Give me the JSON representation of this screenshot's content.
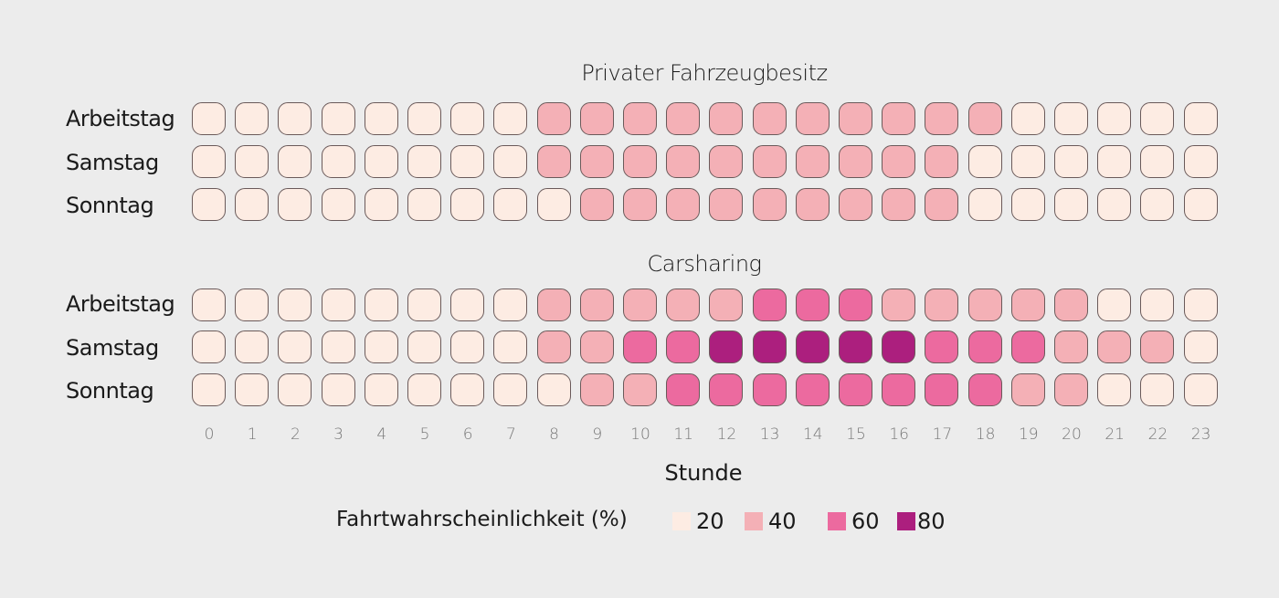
{
  "colors": {
    "1": "#fdece3",
    "2": "#f4b0b6",
    "3": "#ec6a9f",
    "4": "#ac1f7e"
  },
  "chart_data": {
    "type": "heatmap",
    "xlabel": "Stunde",
    "x": [
      0,
      1,
      2,
      3,
      4,
      5,
      6,
      7,
      8,
      9,
      10,
      11,
      12,
      13,
      14,
      15,
      16,
      17,
      18,
      19,
      20,
      21,
      22,
      23
    ],
    "legend_title": "Fahrtwahrscheinlichkeit (%)",
    "legend": [
      {
        "label": "20",
        "level": 1,
        "color": "#fdece3"
      },
      {
        "label": "40",
        "level": 2,
        "color": "#f4b0b6"
      },
      {
        "label": "60",
        "level": 3,
        "color": "#ec6a9f"
      },
      {
        "label": "80",
        "level": 4,
        "color": "#ac1f7e"
      }
    ],
    "panels": [
      {
        "title": "Privater Fahrzeugbesitz",
        "rows": [
          {
            "label": "Arbeitstag",
            "values": [
              20,
              20,
              20,
              20,
              20,
              20,
              20,
              20,
              40,
              40,
              40,
              40,
              40,
              40,
              40,
              40,
              40,
              40,
              40,
              20,
              20,
              20,
              20,
              20
            ]
          },
          {
            "label": "Samstag",
            "values": [
              20,
              20,
              20,
              20,
              20,
              20,
              20,
              20,
              40,
              40,
              40,
              40,
              40,
              40,
              40,
              40,
              40,
              40,
              20,
              20,
              20,
              20,
              20,
              20
            ]
          },
          {
            "label": "Sonntag",
            "values": [
              20,
              20,
              20,
              20,
              20,
              20,
              20,
              20,
              20,
              40,
              40,
              40,
              40,
              40,
              40,
              40,
              40,
              40,
              20,
              20,
              20,
              20,
              20,
              20
            ]
          }
        ]
      },
      {
        "title": "Carsharing",
        "rows": [
          {
            "label": "Arbeitstag",
            "values": [
              20,
              20,
              20,
              20,
              20,
              20,
              20,
              20,
              40,
              40,
              40,
              40,
              40,
              60,
              60,
              60,
              40,
              40,
              40,
              40,
              40,
              20,
              20,
              20
            ]
          },
          {
            "label": "Samstag",
            "values": [
              20,
              20,
              20,
              20,
              20,
              20,
              20,
              20,
              40,
              40,
              60,
              60,
              80,
              80,
              80,
              80,
              80,
              60,
              60,
              60,
              40,
              40,
              40,
              20
            ]
          },
          {
            "label": "Sonntag",
            "values": [
              20,
              20,
              20,
              20,
              20,
              20,
              20,
              20,
              20,
              40,
              40,
              60,
              60,
              60,
              60,
              60,
              60,
              60,
              60,
              40,
              40,
              20,
              20,
              20
            ]
          }
        ]
      }
    ]
  },
  "labels": {
    "panel0_title": "Privater Fahrzeugbesitz",
    "panel1_title": "Carsharing",
    "row_labels": [
      "Arbeitstag",
      "Samstag",
      "Sonntag"
    ],
    "xlabel": "Stunde",
    "legend_title": "Fahrtwahrscheinlichkeit (%)",
    "legend_labels": [
      "20",
      "40",
      "60",
      "80"
    ]
  }
}
